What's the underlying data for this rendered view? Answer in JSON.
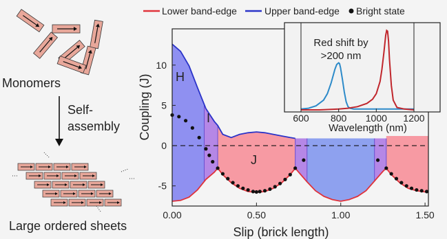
{
  "colors": {
    "lower": "#e0323a",
    "upper": "#2a33c8",
    "h_fill": "#8f90f1",
    "j_fill": "#f79aa3",
    "i_fill": "#b587e6",
    "upper_fill_mid": "#8ea1ef",
    "bright": "#111111",
    "monomer_fill": "#e8a79a",
    "inset_blue": "#2c8ac9",
    "inset_red": "#c0262c"
  },
  "left_panel": {
    "monomers_label": "Monomers",
    "self_assembly_label_1": "Self-",
    "self_assembly_label_2": "assembly",
    "sheets_label": "Large ordered sheets"
  },
  "chart_data": [
    {
      "type": "area",
      "xlabel": "Slip (brick length)",
      "ylabel": "Coupling (J)",
      "xlim": [
        0,
        1.52
      ],
      "ylim": [
        -7.5,
        14.5
      ],
      "x_ticks": [
        "0.00",
        "0.50",
        "1.00",
        "1.50"
      ],
      "y_ticks": [
        "-5",
        "0",
        "5",
        "10"
      ],
      "legend": {
        "placement": "top",
        "entries": [
          "Lower band-edge",
          "Upper band-edge",
          "Bright state"
        ]
      },
      "region_labels": [
        "H",
        "I",
        "J"
      ],
      "series": [
        {
          "name": "Lower band-edge",
          "x": [
            0,
            0.05,
            0.1,
            0.15,
            0.2,
            0.25,
            0.27,
            0.3,
            0.35,
            0.4,
            0.45,
            0.5,
            0.55,
            0.6,
            0.65,
            0.7,
            0.73,
            0.75,
            0.8,
            0.85,
            0.9,
            0.95,
            1.0,
            1.05,
            1.1,
            1.15,
            1.2,
            1.25,
            1.27,
            1.3,
            1.35,
            1.4,
            1.45,
            1.52
          ],
          "values": [
            -6.9,
            -6.8,
            -6.4,
            -5.5,
            -4.2,
            -3.3,
            -2.8,
            -3.6,
            -4.6,
            -5.3,
            -5.7,
            -5.8,
            -5.7,
            -5.3,
            -4.6,
            -3.6,
            -2.8,
            -3.3,
            -4.5,
            -5.6,
            -6.3,
            -6.7,
            -6.9,
            -6.7,
            -6.3,
            -5.6,
            -4.4,
            -3.2,
            -2.8,
            -3.6,
            -4.6,
            -5.3,
            -5.6,
            -5.8
          ]
        },
        {
          "name": "Upper band-edge",
          "x": [
            0,
            0.05,
            0.1,
            0.15,
            0.2,
            0.25,
            0.27,
            0.3,
            0.35,
            0.4,
            0.45,
            0.5,
            0.55,
            0.6,
            0.65,
            0.7,
            0.73
          ],
          "values": [
            12.6,
            11.7,
            9.9,
            7.2,
            4.6,
            3.0,
            2.5,
            1.4,
            1.0,
            1.4,
            1.6,
            1.7,
            1.6,
            1.4,
            1.2,
            1.0,
            0.9
          ]
        },
        {
          "name": "Bright state",
          "x": [
            0.0,
            0.04,
            0.08,
            0.12,
            0.16,
            0.2,
            0.22,
            0.24,
            0.27,
            0.3,
            0.33,
            0.36,
            0.39,
            0.42,
            0.45,
            0.48,
            0.5,
            0.52,
            0.55,
            0.58,
            0.61,
            0.64,
            0.67,
            0.7,
            0.73,
            0.78,
            1.22,
            1.27,
            1.3,
            1.33,
            1.36,
            1.39,
            1.42,
            1.45,
            1.48,
            1.51
          ],
          "values": [
            3.8,
            3.6,
            3.1,
            2.2,
            1.0,
            -0.4,
            -1.2,
            -2.0,
            -2.8,
            -3.5,
            -4.1,
            -4.6,
            -5.0,
            -5.3,
            -5.5,
            -5.7,
            -5.75,
            -5.7,
            -5.6,
            -5.4,
            -5.1,
            -4.7,
            -4.2,
            -3.6,
            -2.8,
            -1.8,
            -1.8,
            -2.8,
            -3.5,
            -4.1,
            -4.6,
            -5.0,
            -5.3,
            -5.5,
            -5.6,
            -5.7
          ]
        }
      ]
    },
    {
      "type": "line",
      "title": "Red shift by >200 nm",
      "title_line1": "Red shift by",
      "title_line2": ">200 nm",
      "xlabel": "Wavelength (nm)",
      "xlim": [
        600,
        1200
      ],
      "ylim": [
        0,
        1.05
      ],
      "x_ticks": [
        "600",
        "800",
        "1000",
        "1200"
      ],
      "series": [
        {
          "color_key": "inset_blue",
          "x": [
            600,
            640,
            680,
            720,
            740,
            760,
            780,
            790,
            800,
            805,
            810,
            820,
            830,
            840,
            850,
            860,
            880,
            900,
            940,
            1000,
            1100,
            1200
          ],
          "values": [
            0.01,
            0.02,
            0.05,
            0.12,
            0.2,
            0.33,
            0.5,
            0.56,
            0.58,
            0.57,
            0.52,
            0.38,
            0.22,
            0.1,
            0.04,
            0.02,
            0.01,
            0.01,
            0.01,
            0.01,
            0.01,
            0.01
          ]
        },
        {
          "color_key": "inset_red",
          "x": [
            600,
            700,
            800,
            850,
            900,
            950,
            980,
            1000,
            1020,
            1030,
            1040,
            1050,
            1055,
            1060,
            1065,
            1070,
            1080,
            1090,
            1110,
            1150,
            1200
          ],
          "values": [
            0.0,
            0.0,
            0.01,
            0.02,
            0.04,
            0.08,
            0.13,
            0.2,
            0.35,
            0.5,
            0.7,
            0.92,
            0.98,
            0.97,
            0.85,
            0.62,
            0.3,
            0.12,
            0.03,
            0.01,
            0.0
          ]
        }
      ]
    }
  ]
}
